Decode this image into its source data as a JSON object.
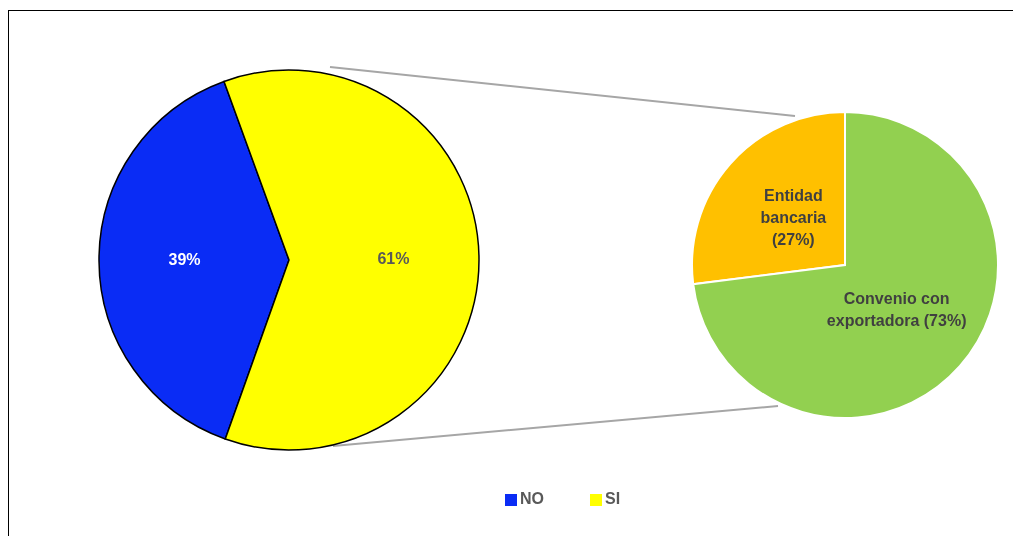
{
  "chart_data": [
    {
      "type": "pie",
      "categories": [
        "NO",
        "SI"
      ],
      "values": [
        39,
        61
      ],
      "colors": [
        "#0a2cf5",
        "#ffff00"
      ],
      "value_labels": [
        "39%",
        "61%"
      ],
      "legend": "bottom"
    },
    {
      "type": "pie",
      "categories": [
        "Entidad bancaria",
        "Convenio con exportadora"
      ],
      "values": [
        27,
        73
      ],
      "colors": [
        "#ffc000",
        "#92d050"
      ],
      "value_labels": [
        "(27%)",
        "(73%)"
      ]
    }
  ]
}
